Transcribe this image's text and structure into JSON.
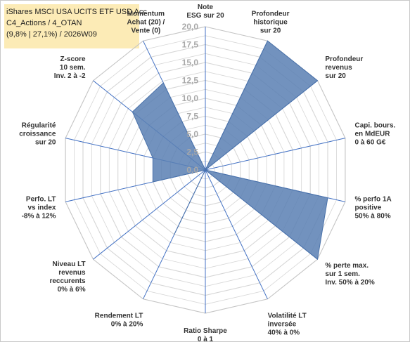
{
  "title": {
    "lines": [
      "iShares MSCI USA UCITS ETF USD Acc",
      "C4_Actions / 4_OTAN",
      "(9,8% | 27,1%) / 2026W09"
    ]
  },
  "chart_data": {
    "type": "radar",
    "ylim": [
      0,
      20
    ],
    "tick_labels": [
      "0,0",
      "2,5",
      "5,0",
      "7,5",
      "10,0",
      "12,5",
      "15,0",
      "17,5",
      "20,0"
    ],
    "tick_values": [
      0,
      2.5,
      5,
      7.5,
      10,
      12.5,
      15,
      17.5,
      20
    ],
    "grid": true,
    "legend": "none",
    "axes": [
      [
        "Note",
        "ESG sur 20"
      ],
      [
        "Profondeur",
        "historique",
        "sur 20"
      ],
      [
        "Profondeur",
        "revenus",
        "sur 20"
      ],
      [
        "Capi. bours.",
        "en MdEUR",
        "0 à 60 G€"
      ],
      [
        "% perfo 1A",
        "positive",
        "50% à 80%"
      ],
      [
        "% perte max.",
        "sur 1 sem.",
        "Inv. 50% à 20%"
      ],
      [
        "Volatilité LT",
        "inversée",
        "40% à 0%"
      ],
      [
        "Ratio Sharpe",
        "0 à 1"
      ],
      [
        "Rendement LT",
        "0% à 20%"
      ],
      [
        "Niveau LT",
        "revenus",
        "reccurents",
        "0% à 6%"
      ],
      [
        "Perfo. LT",
        "vs index",
        "-8% à 12%"
      ],
      [
        "Régularité",
        "croissance",
        "sur 20"
      ],
      [
        "Z-score",
        "10 sem.",
        "Inv. 2 à -2"
      ],
      [
        "Momentum",
        "Achat (20) /",
        "Vente (0)"
      ]
    ],
    "series": [
      {
        "values": [
          0,
          20,
          20,
          0,
          17.5,
          20,
          0,
          0,
          10,
          0,
          7.5,
          7.5,
          13,
          13.5
        ]
      }
    ],
    "colors": {
      "fill": "#5b80b3",
      "stroke": "#4a72aa",
      "spokes": "#4472c4",
      "grid": "#d6d6d6",
      "title_bg": "#fcebb6"
    }
  }
}
